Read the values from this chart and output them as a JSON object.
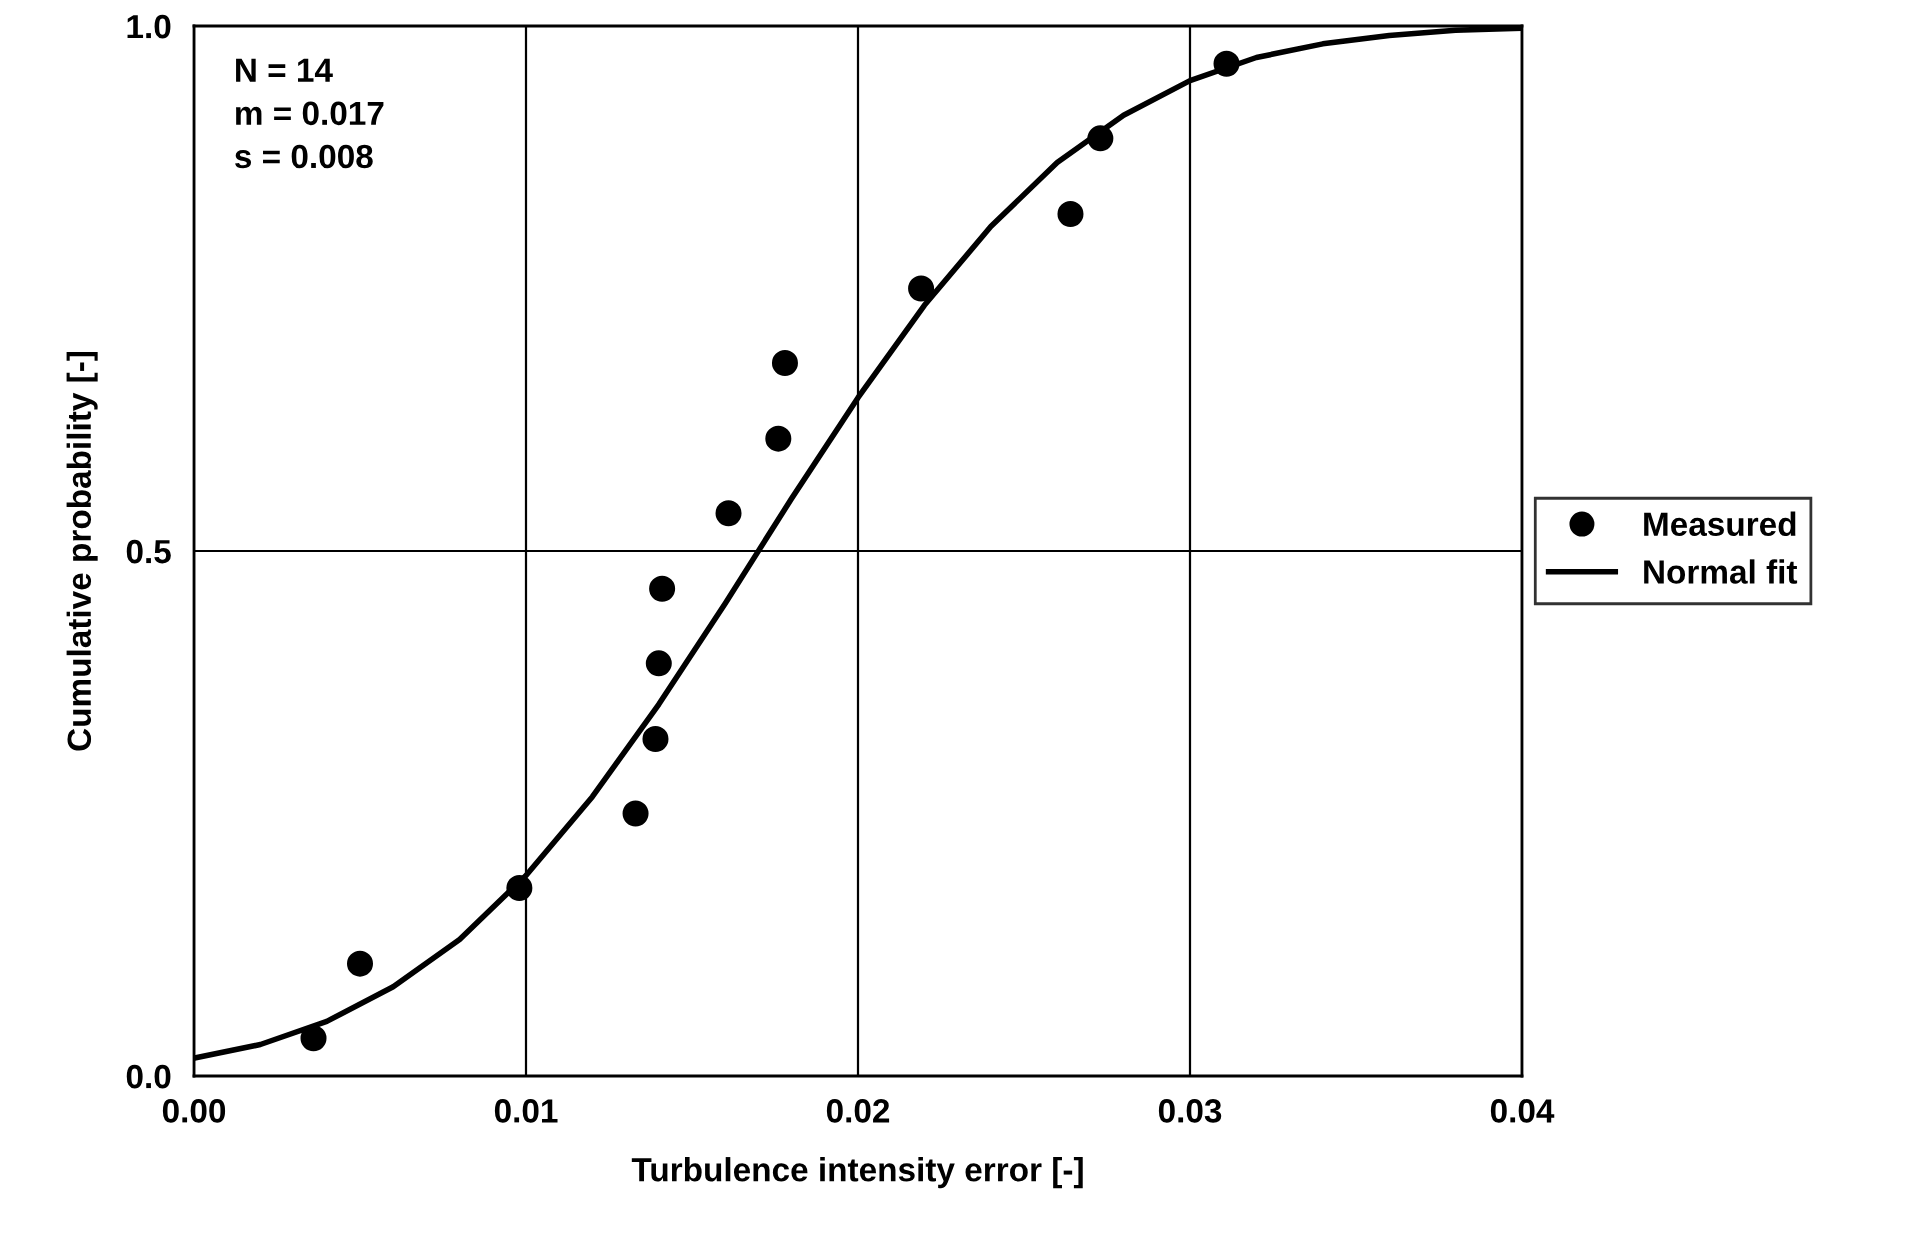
{
  "chart_data": {
    "type": "scatter",
    "xlabel": "Turbulence intensity error [-]",
    "ylabel": "Cumulative probability [-]",
    "annotations": [
      "N = 14\nm = 0.017\ns = 0.008"
    ],
    "series": [
      {
        "name": "Measured",
        "color": "#000000",
        "marker": "circle",
        "x": [
          0.0036,
          0.005,
          0.0098,
          0.0133,
          0.0139,
          0.014,
          0.0141,
          0.0161,
          0.0176,
          0.0178,
          0.0219,
          0.0264,
          0.0273,
          0.0311
        ],
        "values": [
          0.036,
          0.107,
          0.179,
          0.25,
          0.321,
          0.393,
          0.464,
          0.536,
          0.607,
          0.679,
          0.75,
          0.821,
          0.893,
          0.964
        ]
      },
      {
        "name": "Normal fit",
        "type": "line",
        "color": "#000000",
        "marker": "none",
        "line_style": "solid",
        "x": [
          0,
          0.002,
          0.004,
          0.006,
          0.008,
          0.01,
          0.012,
          0.014,
          0.016,
          0.018,
          0.02,
          0.022,
          0.024,
          0.026,
          0.028,
          0.03,
          0.032,
          0.034,
          0.036,
          0.038,
          0.04
        ],
        "values": [
          0.017,
          0.03,
          0.052,
          0.085,
          0.13,
          0.191,
          0.266,
          0.354,
          0.45,
          0.55,
          0.646,
          0.734,
          0.809,
          0.87,
          0.915,
          0.948,
          0.97,
          0.983,
          0.991,
          0.996,
          0.998
        ]
      }
    ],
    "xlim": [
      0,
      0.04
    ],
    "xticks": [
      {
        "value": 0,
        "label": "0.00"
      },
      0.01,
      0.02,
      0.03,
      0.04
    ],
    "ylim": [
      0,
      1
    ],
    "yticks": [
      {
        "value": 0,
        "label": "0.0"
      },
      0.5,
      {
        "value": 1,
        "label": "1.0"
      }
    ],
    "grid": true,
    "legend": "right"
  }
}
